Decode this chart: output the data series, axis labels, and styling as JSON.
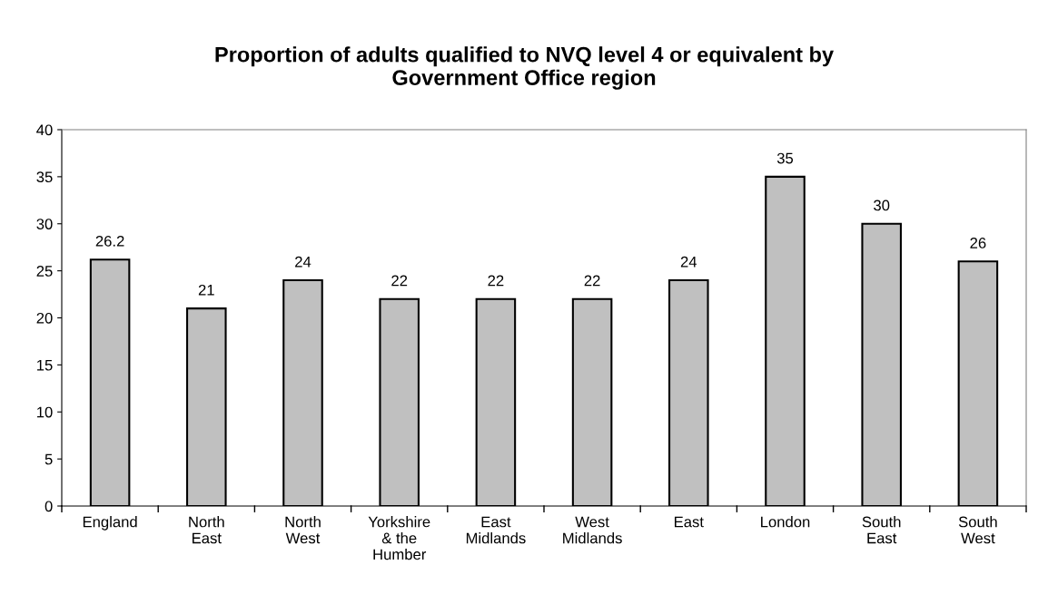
{
  "chart_data": {
    "type": "bar",
    "title": "Proportion of adults qualified to NVQ level 4 or equivalent by\nGovernment Office region",
    "categories": [
      "England",
      "North\nEast",
      "North\nWest",
      "Yorkshire\n& the\nHumber",
      "East\nMidlands",
      "West\nMidlands",
      "East",
      "London",
      "South\nEast",
      "South\nWest"
    ],
    "values": [
      26.2,
      21,
      24,
      22,
      22,
      22,
      24,
      35,
      30,
      26
    ],
    "color": "#c0c0c0",
    "ylim": [
      0,
      40
    ],
    "yticks": [
      0,
      5,
      10,
      15,
      20,
      25,
      30,
      35,
      40
    ],
    "data_labels": true,
    "grid": false,
    "legend": false
  }
}
